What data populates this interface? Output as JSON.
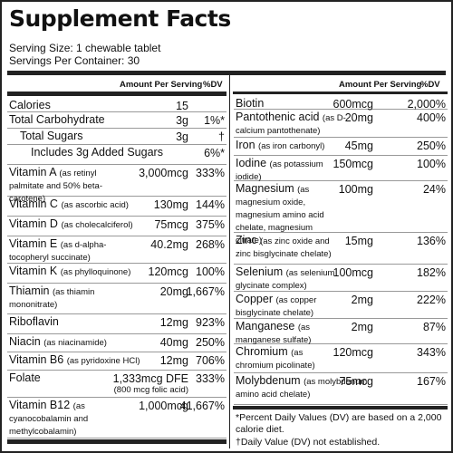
{
  "title": "Supplement Facts",
  "serving_size": "Serving Size: 1 chewable tablet",
  "servings_per_container": "Servings Per Container: 30",
  "left": {
    "header": {
      "amount": "Amount Per Serving",
      "dv": "%DV"
    },
    "rows": [
      {
        "name": "Calories",
        "amount": "15"
      },
      {
        "name": "Total Carbohydrate",
        "amount": "3g",
        "dv": "1%*"
      },
      {
        "name": "Total Sugars",
        "amount": "3g",
        "dv": "†"
      },
      {
        "name": "Includes 3g Added Sugars",
        "dv": "6%*"
      },
      {
        "name": "Vitamin A",
        "note": "(as retinyl palmitate and 50% beta-carotene)",
        "amount": "3,000mcg",
        "dv": "333%"
      },
      {
        "name": "Vitamin C",
        "note": "(as ascorbic acid)",
        "amount": "130mg",
        "dv": "144%"
      },
      {
        "name": "Vitamin D",
        "note": "(as cholecalciferol)",
        "amount": "75mcg",
        "dv": "375%"
      },
      {
        "name": "Vitamin E",
        "note": "(as d-alpha-tocopheryl succinate)",
        "amount": "40.2mg",
        "dv": "268%"
      },
      {
        "name": "Vitamin K",
        "note": "(as phylloquinone)",
        "amount": "120mcg",
        "dv": "100%"
      },
      {
        "name": "Thiamin",
        "note": "(as thiamin mononitrate)",
        "amount": "20mg",
        "dv": "1,667%"
      },
      {
        "name": "Riboflavin",
        "amount": "12mg",
        "dv": "923%"
      },
      {
        "name": "Niacin",
        "note": "(as niacinamide)",
        "amount": "40mg",
        "dv": "250%"
      },
      {
        "name": "Vitamin B6",
        "note": "(as pyridoxine HCl)",
        "amount": "12mg",
        "dv": "706%"
      },
      {
        "name": "Folate",
        "amount": "1,333mcg DFE",
        "amount_note": "(800 mcg folic acid)",
        "dv": "333%"
      },
      {
        "name": "Vitamin B12",
        "note": "(as cyanocobalamin and methylcobalamin)",
        "amount": "1,000mcg",
        "dv": "41,667%"
      }
    ]
  },
  "right": {
    "header": {
      "amount": "Amount Per Serving",
      "dv": "%DV"
    },
    "rows": [
      {
        "name": "Biotin",
        "amount": "600mcg",
        "dv": "2,000%"
      },
      {
        "name": "Pantothenic acid",
        "note": "(as D-calcium pantothenate)",
        "amount": "20mg",
        "dv": "400%"
      },
      {
        "name": "Iron",
        "note": "(as iron carbonyl)",
        "amount": "45mg",
        "dv": "250%"
      },
      {
        "name": "Iodine",
        "note": "(as potassium iodide)",
        "amount": "150mcg",
        "dv": "100%"
      },
      {
        "name": "Magnesium",
        "note": "(as magnesium oxide, magnesium amino acid chelate, magnesium citrate)",
        "amount": "100mg",
        "dv": "24%"
      },
      {
        "name": "Zinc",
        "note": "(as zinc oxide and zinc bisglycinate chelate)",
        "amount": "15mg",
        "dv": "136%"
      },
      {
        "name": "Selenium",
        "note": "(as selenium glycinate complex)",
        "amount": "100mcg",
        "dv": "182%"
      },
      {
        "name": "Copper",
        "note": "(as copper bisglycinate chelate)",
        "amount": "2mg",
        "dv": "222%"
      },
      {
        "name": "Manganese",
        "note": "(as manganese sulfate)",
        "amount": "2mg",
        "dv": "87%"
      },
      {
        "name": "Chromium",
        "note": "(as chromium picolinate)",
        "amount": "120mcg",
        "dv": "343%"
      },
      {
        "name": "Molybdenum",
        "note": "(as molybdenum amino acid chelate)",
        "amount": "75mcg",
        "dv": "167%"
      }
    ]
  },
  "footnotes": [
    "*Percent Daily Values (DV) are based on a 2,000 calorie diet.",
    "†Daily Value (DV) not established."
  ]
}
